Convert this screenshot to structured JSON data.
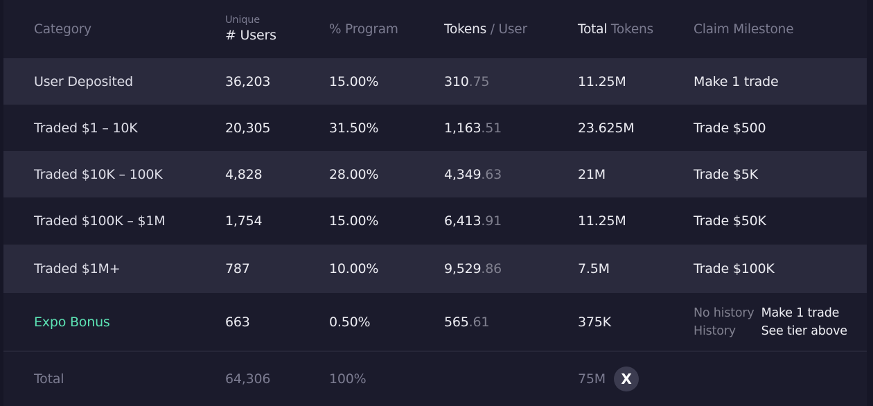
{
  "header": {
    "category": "Category",
    "users_top": "Unique",
    "users_bottom": "# Users",
    "program": "% Program",
    "tokens_user_bright": "Tokens",
    "tokens_user_dim": "/ User",
    "total_bright": "Total",
    "total_dim": "Tokens",
    "milestone": "Claim Milestone"
  },
  "rows": [
    {
      "category": "User Deposited",
      "users": "36,203",
      "program": "15.00%",
      "tpu_int": "310",
      "tpu_dec": ".75",
      "total": "11.25M",
      "milestone": "Make 1 trade"
    },
    {
      "category": "Traded $1 – 10K",
      "users": "20,305",
      "program": "31.50%",
      "tpu_int": "1,163",
      "tpu_dec": ".51",
      "total": "23.625M",
      "milestone": "Trade $500"
    },
    {
      "category": "Traded $10K – 100K",
      "users": "4,828",
      "program": "28.00%",
      "tpu_int": "4,349",
      "tpu_dec": ".63",
      "total": "21M",
      "milestone": "Trade $5K"
    },
    {
      "category": "Traded $100K – $1M",
      "users": "1,754",
      "program": "15.00%",
      "tpu_int": "6,413",
      "tpu_dec": ".91",
      "total": "11.25M",
      "milestone": "Trade $50K"
    },
    {
      "category": "Traded $1M+",
      "users": "787",
      "program": "10.00%",
      "tpu_int": "9,529",
      "tpu_dec": ".86",
      "total": "7.5M",
      "milestone": "Trade $100K"
    }
  ],
  "bonus": {
    "category": "Expo Bonus",
    "users": "663",
    "program": "0.50%",
    "tpu_int": "565",
    "tpu_dec": ".61",
    "total": "375K",
    "no_history_label": "No history",
    "no_history_value": "Make 1 trade",
    "history_label": "History",
    "history_value": "See tier above"
  },
  "total": {
    "label": "Total",
    "users": "64,306",
    "program": "100%",
    "tokens": "75M",
    "badge": "X"
  },
  "colors": {
    "accent_green": "#5ce3b4",
    "row_alt": "#2a2a3d",
    "background": "#1b1b2c"
  }
}
